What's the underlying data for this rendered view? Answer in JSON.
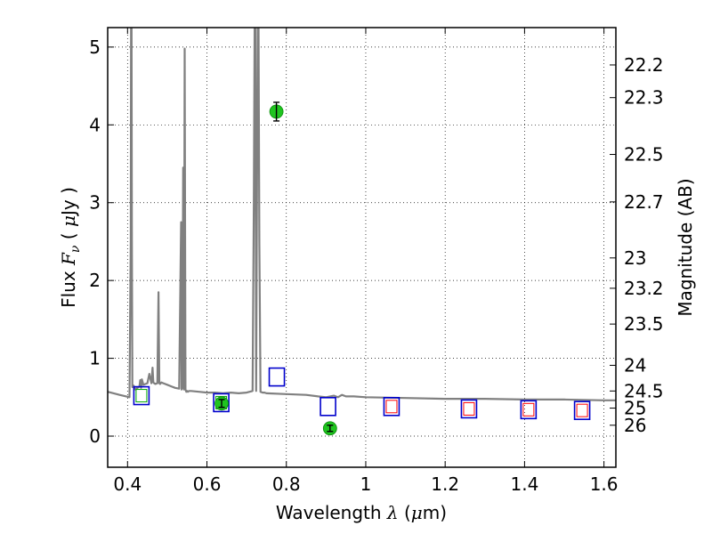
{
  "chart_data": {
    "type": "scatter",
    "xlabel": {
      "prefix": "Wavelength  ",
      "sym": "λ",
      "mid": " (",
      "unit_sym": "μ",
      "suffix": "m)"
    },
    "ylabel": {
      "prefix": "Flux  ",
      "sym": "F",
      "sub": "ν",
      "mid": "  ( ",
      "unit_sym": "μ",
      "suffix": "Jy )"
    },
    "y2label": "Magnitude (AB)",
    "xlim": [
      0.35,
      1.63
    ],
    "ylim": [
      -0.4,
      5.25
    ],
    "xticks": [
      0.4,
      0.6,
      0.8,
      1.0,
      1.2,
      1.4,
      1.6
    ],
    "xtick_labels": [
      "0.4",
      "0.6",
      "0.8",
      "1",
      "1.2",
      "1.4",
      "1.6"
    ],
    "yticks": [
      0,
      1,
      2,
      3,
      4,
      5
    ],
    "ytick_labels": [
      "0",
      "1",
      "2",
      "3",
      "4",
      "5"
    ],
    "y2ticks": [
      {
        "label": "22.2",
        "flux": 4.77
      },
      {
        "label": "22.3",
        "flux": 4.35
      },
      {
        "label": "22.5",
        "flux": 3.62
      },
      {
        "label": "22.7",
        "flux": 3.01
      },
      {
        "label": "23",
        "flux": 2.29
      },
      {
        "label": "23.2",
        "flux": 1.9
      },
      {
        "label": "23.5",
        "flux": 1.44
      },
      {
        "label": "24",
        "flux": 0.91
      },
      {
        "label": "24.5",
        "flux": 0.58
      },
      {
        "label": "25",
        "flux": 0.36
      },
      {
        "label": "26",
        "flux": 0.14
      }
    ],
    "grid": true,
    "colors": {
      "spectrum": "#808080",
      "observed": "#1fc41f",
      "model_blue": "#0000cc",
      "model_red": "#ff0000",
      "model_green": "#00aa00"
    },
    "series": [
      {
        "kind": "spectrum",
        "x": [
          0.35,
          0.38,
          0.405,
          0.408,
          0.409,
          0.41,
          0.411,
          0.412,
          0.415,
          0.42,
          0.43,
          0.432,
          0.434,
          0.436,
          0.44,
          0.45,
          0.455,
          0.46,
          0.463,
          0.465,
          0.467,
          0.47,
          0.475,
          0.478,
          0.48,
          0.482,
          0.485,
          0.49,
          0.5,
          0.51,
          0.52,
          0.53,
          0.535,
          0.536,
          0.538,
          0.54,
          0.542,
          0.544,
          0.546,
          0.548,
          0.55,
          0.552,
          0.555,
          0.56,
          0.58,
          0.6,
          0.62,
          0.64,
          0.66,
          0.68,
          0.7,
          0.715,
          0.718,
          0.72,
          0.722,
          0.724,
          0.728,
          0.73,
          0.732,
          0.735,
          0.74,
          0.745,
          0.75,
          0.8,
          0.85,
          0.88,
          0.9,
          0.92,
          0.93,
          0.94,
          0.95,
          0.97,
          1.0,
          1.1,
          1.2,
          1.3,
          1.4,
          1.5,
          1.6,
          1.63
        ],
        "y": [
          0.57,
          0.53,
          0.5,
          2.5,
          5.3,
          5.3,
          2.5,
          0.63,
          0.65,
          0.6,
          0.64,
          0.72,
          0.62,
          0.73,
          0.66,
          0.68,
          0.8,
          0.68,
          0.88,
          0.69,
          0.68,
          0.67,
          0.68,
          1.85,
          0.68,
          0.67,
          0.69,
          0.68,
          0.66,
          0.64,
          0.62,
          0.61,
          2.75,
          0.6,
          0.62,
          3.45,
          0.6,
          4.98,
          0.6,
          0.57,
          0.58,
          0.57,
          0.58,
          0.58,
          0.57,
          0.56,
          0.56,
          0.55,
          0.56,
          0.55,
          0.56,
          0.58,
          3.0,
          5.3,
          5.3,
          0.58,
          5.3,
          5.3,
          2.5,
          0.57,
          0.56,
          0.56,
          0.55,
          0.54,
          0.53,
          0.51,
          0.5,
          0.52,
          0.5,
          0.53,
          0.51,
          0.51,
          0.5,
          0.49,
          0.48,
          0.48,
          0.47,
          0.47,
          0.46,
          0.46
        ]
      },
      {
        "kind": "observed",
        "points": [
          {
            "x": 0.637,
            "y": 0.42,
            "err": 0.05
          },
          {
            "x": 0.775,
            "y": 4.17,
            "err": 0.12
          },
          {
            "x": 0.91,
            "y": 0.1,
            "err": 0.04
          }
        ]
      },
      {
        "kind": "model",
        "points": [
          {
            "x": 0.435,
            "y": 0.52,
            "inner": "green"
          },
          {
            "x": 0.636,
            "y": 0.43,
            "inner": "green"
          },
          {
            "x": 0.776,
            "y": 0.76,
            "inner": "none"
          },
          {
            "x": 0.905,
            "y": 0.38,
            "inner": "none"
          },
          {
            "x": 1.065,
            "y": 0.38,
            "inner": "red"
          },
          {
            "x": 1.26,
            "y": 0.35,
            "inner": "red"
          },
          {
            "x": 1.41,
            "y": 0.34,
            "inner": "red"
          },
          {
            "x": 1.545,
            "y": 0.33,
            "inner": "red"
          }
        ]
      }
    ]
  }
}
